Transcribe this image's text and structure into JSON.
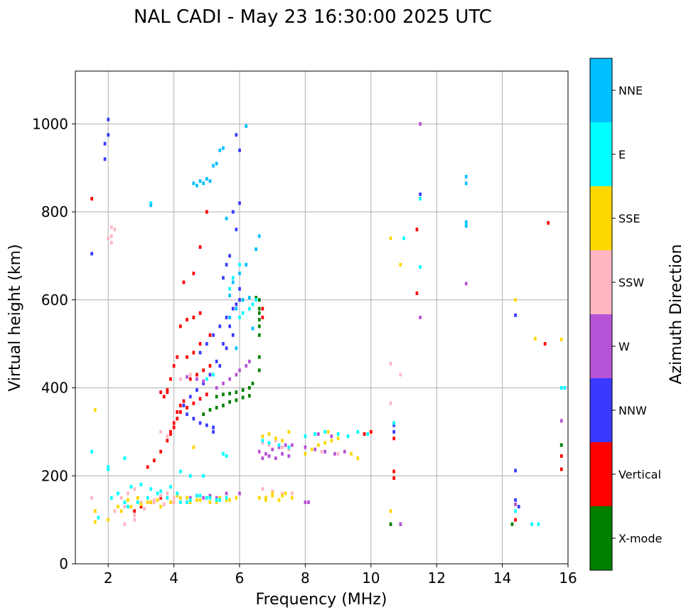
{
  "chart_data": {
    "type": "scatter",
    "title": "NAL CADI - May 23 16:30:00 2025 UTC",
    "xlabel": "Frequency (MHz)",
    "ylabel": "Virtual height (km)",
    "xlim": [
      1,
      16
    ],
    "ylim": [
      0,
      1120
    ],
    "xticks": [
      2,
      4,
      6,
      8,
      10,
      12,
      14,
      16
    ],
    "xtick_labels": [
      "2",
      "4",
      "6",
      "8",
      "10",
      "12",
      "14",
      "16"
    ],
    "yticks": [
      0,
      200,
      400,
      600,
      800,
      1000
    ],
    "ytick_labels": [
      "0",
      "200",
      "400",
      "600",
      "800",
      "1000"
    ],
    "grid": true,
    "colorbar": {
      "label": "Azimuth Direction",
      "categories": [
        "X-mode",
        "Vertical",
        "NNW",
        "W",
        "SSW",
        "SSE",
        "E",
        "NNE"
      ],
      "colors": [
        "#008000",
        "#ff0000",
        "#3a3aff",
        "#b652d6",
        "#ffb6c1",
        "#ffd700",
        "#00ffff",
        "#00bfff"
      ]
    },
    "point_width_mhz": 0.08,
    "point_height_km": 8,
    "series": [
      {
        "name": "X-mode",
        "x": [
          5.3,
          5.5,
          5.7,
          5.9,
          6.1,
          6.3,
          4.9,
          5.1,
          5.3,
          5.5,
          5.7,
          5.9,
          6.1,
          6.3,
          6.4,
          6.6,
          6.6,
          6.6,
          6.6,
          6.6,
          6.6,
          10.6,
          10.9,
          14.3,
          15.8,
          15.8,
          6.6,
          6.6,
          6.5
        ],
        "y": [
          380,
          385,
          387,
          390,
          395,
          400,
          340,
          350,
          355,
          360,
          368,
          372,
          378,
          382,
          410,
          440,
          470,
          580,
          600,
          540,
          520,
          90,
          90,
          90,
          270,
          270,
          555,
          570,
          605
        ]
      },
      {
        "name": "Vertical",
        "x": [
          3.2,
          3.4,
          3.6,
          3.8,
          3.9,
          4.0,
          4.1,
          4.2,
          4.4,
          4.6,
          4.8,
          5.0,
          3.7,
          3.8,
          3.9,
          4.0,
          4.1,
          3.9,
          4.0,
          4.1,
          4.2,
          4.3,
          4.5,
          4.7,
          4.9,
          5.1,
          4.2,
          4.4,
          4.6,
          4.8,
          4.3,
          4.6,
          4.8,
          5.0,
          4.4,
          4.6,
          4.8,
          5.1,
          1.5,
          2.8,
          3.0,
          3.3,
          3.6,
          4.0,
          10.7,
          10.7,
          10.7,
          10.7,
          11.4,
          11.4,
          15.3,
          15.4,
          15.8,
          15.8,
          14.4,
          10.0,
          9.8,
          6.7,
          6.7,
          3.8,
          3.6
        ],
        "y": [
          220,
          235,
          255,
          280,
          295,
          310,
          330,
          345,
          355,
          365,
          375,
          385,
          380,
          390,
          420,
          450,
          470,
          300,
          320,
          345,
          360,
          370,
          420,
          430,
          440,
          450,
          540,
          555,
          560,
          570,
          640,
          660,
          720,
          800,
          470,
          480,
          500,
          520,
          830,
          120,
          130,
          140,
          150,
          140,
          320,
          285,
          210,
          195,
          615,
          760,
          500,
          775,
          245,
          215,
          100,
          300,
          295,
          580,
          560,
          395,
          390
        ]
      },
      {
        "name": "NNW",
        "x": [
          4.3,
          4.5,
          4.7,
          4.9,
          5.1,
          5.3,
          5.5,
          5.7,
          5.9,
          6.0,
          4.8,
          5.0,
          5.2,
          5.4,
          5.6,
          5.8,
          6.0,
          4.4,
          4.6,
          4.8,
          5.0,
          5.2,
          5.4,
          5.6,
          5.8,
          5.5,
          5.6,
          5.7,
          5.9,
          6.0,
          5.8,
          5.9,
          1.5,
          1.9,
          1.9,
          2.0,
          2.0,
          10.7,
          10.7,
          11.5,
          14.4,
          14.4,
          14.4,
          14.5,
          5.2,
          6.0
        ],
        "y": [
          360,
          380,
          395,
          410,
          430,
          460,
          500,
          540,
          590,
          625,
          480,
          500,
          520,
          540,
          560,
          580,
          600,
          340,
          330,
          320,
          315,
          310,
          450,
          490,
          520,
          650,
          680,
          700,
          760,
          820,
          800,
          975,
          705,
          920,
          955,
          975,
          1010,
          315,
          300,
          840,
          565,
          212,
          145,
          130,
          300,
          940
        ]
      },
      {
        "name": "W",
        "x": [
          5.3,
          5.5,
          5.7,
          5.9,
          6.0,
          6.2,
          6.3,
          4.5,
          4.7,
          4.9,
          5.1,
          5.3,
          5.6,
          6.0,
          6.6,
          6.8,
          7.0,
          7.2,
          7.4,
          7.6,
          6.7,
          6.9,
          7.1,
          7.3,
          7.5,
          8.0,
          8.3,
          8.6,
          8.9,
          9.2,
          8.0,
          8.4,
          8.8,
          11.5,
          11.5,
          12.9,
          14.4,
          15.8,
          10.9,
          8.1,
          4.4,
          4.7,
          4.9
        ],
        "y": [
          400,
          410,
          420,
          430,
          440,
          450,
          460,
          150,
          155,
          150,
          155,
          150,
          160,
          160,
          255,
          250,
          260,
          265,
          270,
          270,
          240,
          245,
          240,
          250,
          245,
          265,
          260,
          255,
          250,
          255,
          140,
          295,
          290,
          560,
          1000,
          637,
          135,
          325,
          90,
          140,
          425,
          420,
          415
        ]
      },
      {
        "name": "SSW",
        "x": [
          2.0,
          2.2,
          2.4,
          2.6,
          2.8,
          3.0,
          3.2,
          3.4,
          3.6,
          3.8,
          4.0,
          2.2,
          2.5,
          2.8,
          3.1,
          3.4,
          3.7,
          4.0,
          2.1,
          2.1,
          2.1,
          10.6,
          10.6,
          10.9,
          6.7,
          7.0,
          7.3,
          7.6,
          8.5,
          9.0,
          6.7,
          6.9,
          7.1,
          7.3,
          7.5,
          3.6,
          3.8,
          4.2,
          4.5,
          2.5,
          2.8,
          1.5
        ],
        "y": [
          740,
          760,
          150,
          160,
          170,
          140,
          150,
          145,
          155,
          160,
          140,
          120,
          130,
          110,
          125,
          140,
          135,
          150,
          730,
          745,
          765,
          455,
          365,
          430,
          170,
          165,
          160,
          160,
          255,
          250,
          275,
          270,
          280,
          265,
          260,
          300,
          290,
          420,
          430,
          90,
          100,
          150
        ]
      },
      {
        "name": "SSE",
        "x": [
          1.6,
          2.3,
          2.6,
          2.9,
          3.2,
          3.5,
          3.8,
          4.1,
          4.4,
          4.7,
          5.0,
          5.3,
          5.6,
          5.9,
          2.4,
          2.7,
          3.0,
          3.3,
          3.6,
          3.9,
          4.2,
          4.5,
          4.8,
          5.1,
          5.4,
          5.7,
          6.7,
          6.9,
          7.1,
          7.3,
          7.5,
          6.8,
          7.0,
          7.2,
          7.4,
          7.6,
          8.0,
          8.2,
          8.4,
          8.6,
          8.8,
          9.0,
          9.4,
          9.6,
          8.7,
          10.6,
          10.6,
          10.9,
          14.4,
          15.0,
          15.8,
          6.6,
          6.8,
          7.0,
          7.3,
          1.6,
          2.0,
          4.6,
          1.6
        ],
        "y": [
          95,
          130,
          145,
          150,
          140,
          145,
          150,
          155,
          150,
          145,
          150,
          140,
          145,
          150,
          120,
          130,
          135,
          140,
          130,
          140,
          150,
          140,
          145,
          140,
          150,
          145,
          290,
          295,
          285,
          280,
          300,
          150,
          155,
          145,
          160,
          150,
          250,
          260,
          270,
          275,
          280,
          285,
          250,
          240,
          300,
          740,
          120,
          680,
          600,
          512,
          510,
          150,
          145,
          160,
          155,
          350,
          100,
          265,
          120
        ]
      },
      {
        "name": "E",
        "x": [
          1.7,
          2.1,
          2.3,
          2.5,
          2.7,
          3.0,
          3.3,
          3.6,
          3.9,
          4.2,
          4.5,
          4.8,
          5.1,
          5.4,
          2.6,
          2.9,
          3.2,
          3.5,
          3.8,
          4.1,
          4.4,
          4.7,
          5.0,
          5.3,
          5.6,
          4.2,
          4.5,
          4.9,
          5.5,
          5.6,
          6.7,
          6.9,
          7.2,
          7.5,
          8.0,
          8.3,
          8.6,
          9.0,
          9.3,
          9.6,
          9.9,
          10.7,
          11.0,
          11.5,
          11.5,
          12.9,
          14.4,
          14.9,
          15.1,
          15.9,
          15.8,
          6.0,
          6.1,
          6.3,
          6.4,
          6.5,
          5.7,
          5.8,
          6.0,
          5.0,
          5.2,
          3.3,
          1.5,
          2.0,
          2.0,
          2.5
        ],
        "y": [
          105,
          150,
          160,
          140,
          175,
          180,
          170,
          165,
          175,
          140,
          145,
          155,
          150,
          145,
          130,
          140,
          150,
          160,
          150,
          160,
          140,
          155,
          150,
          145,
          150,
          210,
          200,
          200,
          250,
          245,
          280,
          275,
          270,
          265,
          290,
          295,
          300,
          295,
          290,
          300,
          295,
          320,
          740,
          830,
          675,
          770,
          120,
          90,
          90,
          400,
          400,
          560,
          570,
          580,
          590,
          600,
          625,
          650,
          680,
          420,
          430,
          820,
          255,
          220,
          215,
          240
        ]
      },
      {
        "name": "NNE",
        "x": [
          12.9,
          12.9,
          12.9,
          12.9,
          4.7,
          4.9,
          5.1,
          5.3,
          5.5,
          5.6,
          6.5,
          6.6,
          6.4,
          6.2,
          5.7,
          5.9,
          6.1,
          6.3,
          4.6,
          4.8,
          5.0,
          5.2,
          5.4,
          5.8,
          6.0,
          6.2,
          3.3,
          5.7,
          5.9
        ],
        "y": [
          880,
          865,
          777,
          768,
          860,
          865,
          870,
          910,
          945,
          785,
          715,
          745,
          535,
          995,
          560,
          580,
          600,
          605,
          865,
          870,
          875,
          905,
          940,
          640,
          660,
          680,
          815,
          610,
          490
        ]
      }
    ]
  }
}
